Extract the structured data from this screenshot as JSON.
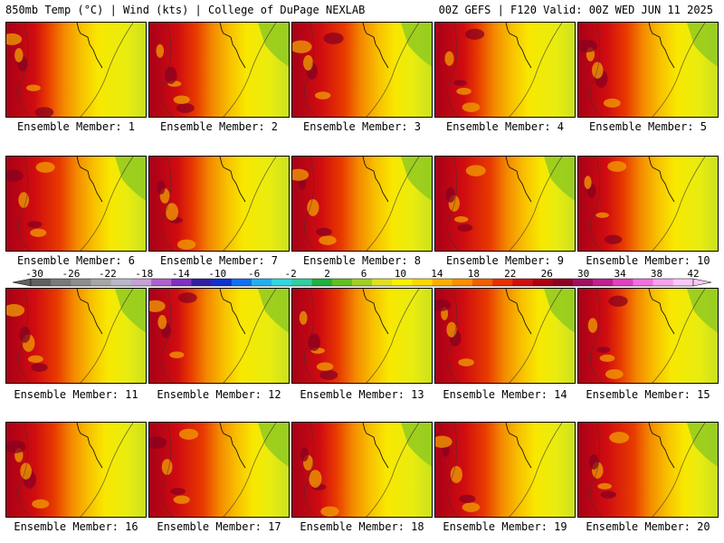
{
  "header": {
    "left": "850mb Temp (°C) | Wind (kts) | College of DuPage NEXLAB",
    "right": "00Z GEFS | F120 Valid: 00Z WED JUN 11 2025"
  },
  "members": [
    "Ensemble Member: 1",
    "Ensemble Member: 2",
    "Ensemble Member: 3",
    "Ensemble Member: 4",
    "Ensemble Member: 5",
    "Ensemble Member: 6",
    "Ensemble Member: 7",
    "Ensemble Member: 8",
    "Ensemble Member: 9",
    "Ensemble Member: 10",
    "Ensemble Member: 11",
    "Ensemble Member: 12",
    "Ensemble Member: 13",
    "Ensemble Member: 14",
    "Ensemble Member: 15",
    "Ensemble Member: 16",
    "Ensemble Member: 17",
    "Ensemble Member: 18",
    "Ensemble Member: 19",
    "Ensemble Member: 20"
  ],
  "colorbar": {
    "ticks": [
      "-30",
      "-26",
      "-22",
      "-18",
      "-14",
      "-10",
      "-6",
      "-2",
      "2",
      "6",
      "10",
      "14",
      "18",
      "22",
      "26",
      "30",
      "34",
      "38",
      "42"
    ],
    "colors": [
      "#606060",
      "#7a7a7a",
      "#8e8e8e",
      "#a6a6a6",
      "#b8b8c8",
      "#c8a0d8",
      "#b060d0",
      "#8030c0",
      "#3020a0",
      "#1030d0",
      "#1070f0",
      "#20b0f0",
      "#30d8e0",
      "#30d0a0",
      "#20b040",
      "#60c020",
      "#a0d020",
      "#e0e020",
      "#f8f000",
      "#f8d800",
      "#f8b000",
      "#f89000",
      "#f06000",
      "#e83000",
      "#d01010",
      "#b00010",
      "#900020",
      "#a01060",
      "#c02090",
      "#e040c0",
      "#f070e0",
      "#f8a0f0",
      "#f8c8f8"
    ]
  }
}
